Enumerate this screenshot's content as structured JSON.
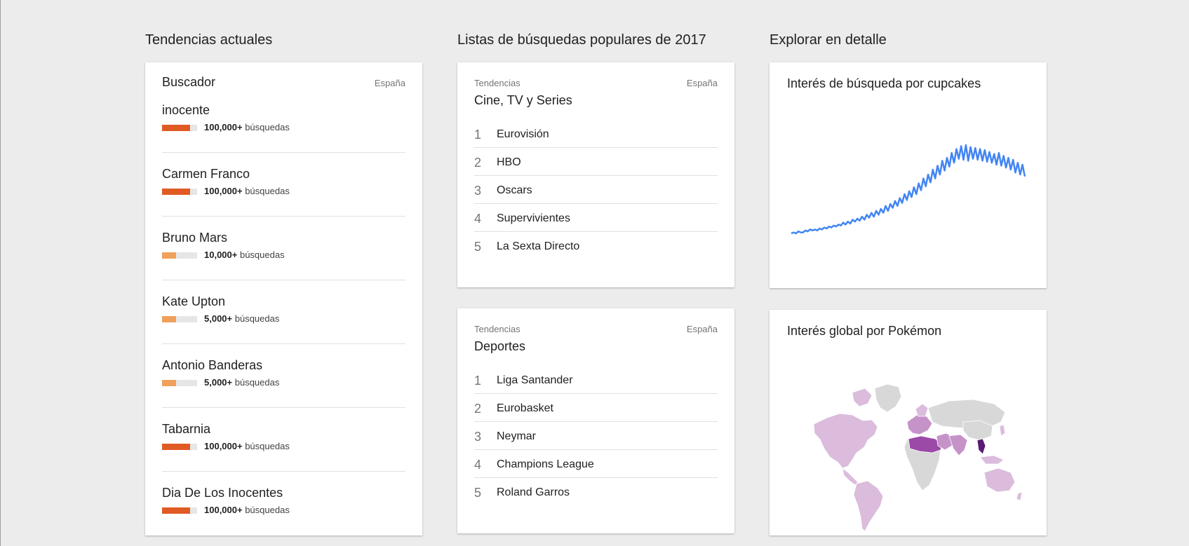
{
  "colors": {
    "bar_high": "#e05a24",
    "bar_mid": "#f0a05a",
    "line": "#4285f4"
  },
  "trending": {
    "section_title": "Tendencias actuales",
    "card_title": "Buscador",
    "country": "España",
    "items": [
      {
        "name": "inocente",
        "volume": "100,000+",
        "unit": "búsquedas",
        "level": 0.8
      },
      {
        "name": "Carmen Franco",
        "volume": "100,000+",
        "unit": "búsquedas",
        "level": 0.8
      },
      {
        "name": "Bruno Mars",
        "volume": "10,000+",
        "unit": "búsquedas",
        "level": 0.4
      },
      {
        "name": "Kate Upton",
        "volume": "5,000+",
        "unit": "búsquedas",
        "level": 0.4
      },
      {
        "name": "Antonio Banderas",
        "volume": "5,000+",
        "unit": "búsquedas",
        "level": 0.4
      },
      {
        "name": "Tabarnia",
        "volume": "100,000+",
        "unit": "búsquedas",
        "level": 0.8
      },
      {
        "name": "Dia De Los Inocentes",
        "volume": "100,000+",
        "unit": "búsquedas",
        "level": 0.8
      }
    ]
  },
  "lists": {
    "section_title": "Listas de búsquedas populares de 2017",
    "cards": [
      {
        "subtitle": "Tendencias",
        "country": "España",
        "title": "Cine, TV y Series",
        "items": [
          "Eurovisión",
          "HBO",
          "Oscars",
          "Supervivientes",
          "La Sexta Directo"
        ]
      },
      {
        "subtitle": "Tendencias",
        "country": "España",
        "title": "Deportes",
        "items": [
          "Liga Santander",
          "Eurobasket",
          "Neymar",
          "Champions League",
          "Roland Garros"
        ]
      }
    ]
  },
  "explore": {
    "section_title": "Explorar en detalle",
    "line_card_title": "Interés de búsqueda por cupcakes",
    "map_card_title": "Interés global por Pokémon",
    "chart_data": {
      "type": "line",
      "series": [
        {
          "values": [
            10,
            11,
            10,
            12,
            11,
            11,
            13,
            12,
            14,
            13,
            14,
            13,
            15,
            14,
            16,
            15,
            17,
            16,
            18,
            17,
            19,
            18,
            21,
            19,
            22,
            20,
            24,
            22,
            25,
            23,
            27,
            24,
            29,
            26,
            31,
            27,
            33,
            29,
            35,
            31,
            38,
            33,
            40,
            36,
            43,
            38,
            46,
            41,
            50,
            44,
            53,
            47,
            57,
            50,
            61,
            54,
            66,
            58,
            70,
            62,
            75,
            66,
            79,
            70,
            84,
            74,
            87,
            78,
            92,
            82,
            96,
            86,
            99,
            85,
            100,
            84,
            98,
            86,
            97,
            85,
            96,
            84,
            95,
            83,
            93,
            82,
            91,
            80,
            92,
            79,
            89,
            77,
            87,
            75,
            85,
            72,
            82,
            70,
            80,
            68
          ]
        }
      ],
      "ylim": [
        0,
        100
      ]
    },
    "map": {
      "colors": {
        "none": "#d8d8d8",
        "low": "#dbbcdc",
        "mid": "#c593c8",
        "high": "#9c4aa8",
        "top": "#5a1b72"
      }
    }
  }
}
